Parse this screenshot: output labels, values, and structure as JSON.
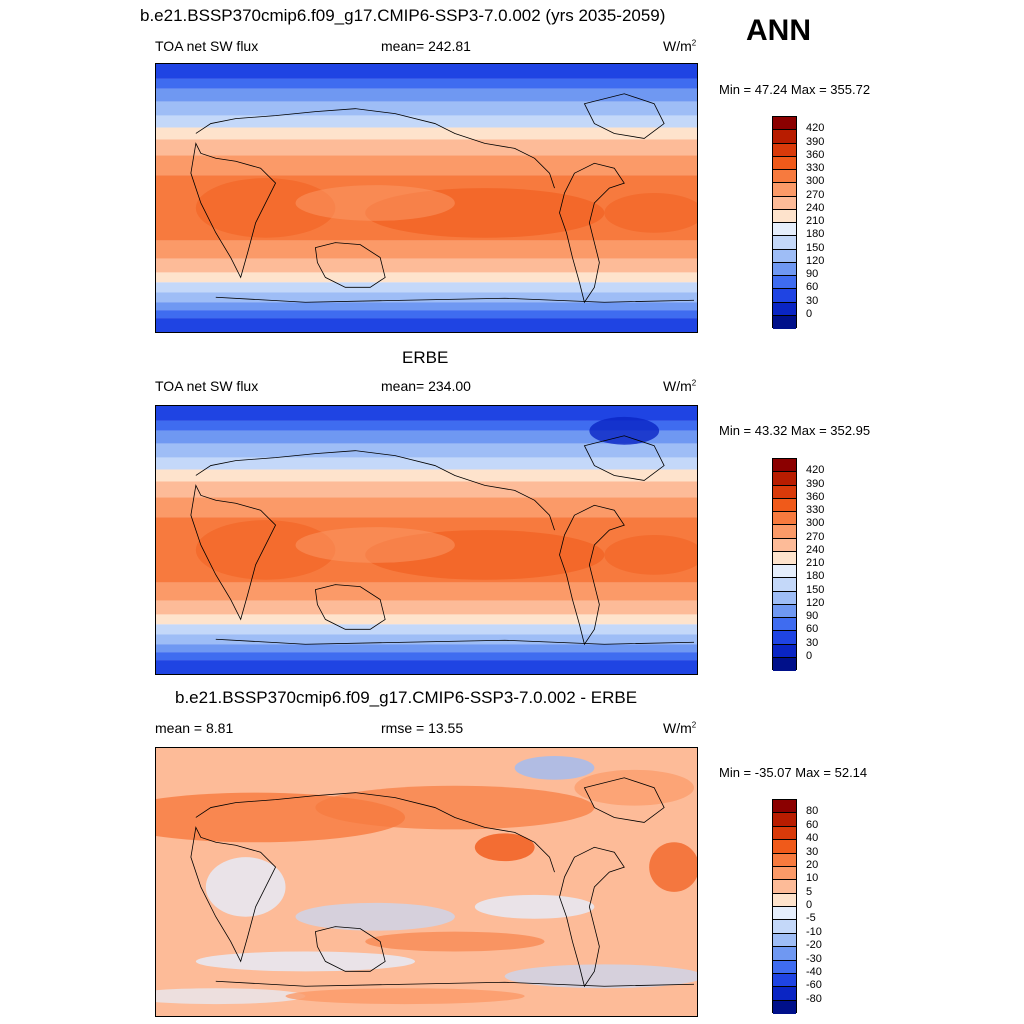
{
  "header": {
    "top_title": "b.e21.BSSP370cmip6.f09_g17.CMIP6-SSP3-7.0.002 (yrs 2035-2059)",
    "season": "ANN"
  },
  "panels": [
    {
      "id": "model",
      "title": "b.e21.BSSP370cmip6.f09_g17.CMIP6-SSP3-7.0.002 (yrs 2035-2059)",
      "left_label": "TOA net SW flux",
      "center_label": "mean= 242.81",
      "units": "W/m",
      "units_sup": "2",
      "minmax": "Min =  47.24 Max = 355.72",
      "colorbar": {
        "ticks": [
          "420",
          "390",
          "360",
          "330",
          "300",
          "270",
          "240",
          "210",
          "180",
          "150",
          "120",
          "90",
          "60",
          "30",
          "0"
        ],
        "colors": [
          "#8b0000",
          "#b81c00",
          "#d93a0a",
          "#f05a1a",
          "#f77a3e",
          "#fb9a68",
          "#fdbb98",
          "#fee3cc",
          "#e5eefc",
          "#c4d8f9",
          "#9ebdf6",
          "#6f98f2",
          "#3f6cf0",
          "#1f44e3",
          "#0a25c4",
          "#00108a"
        ]
      }
    },
    {
      "id": "obs",
      "title": "ERBE",
      "left_label": "TOA net SW flux",
      "center_label": "mean= 234.00",
      "units": "W/m",
      "units_sup": "2",
      "minmax": "Min =  43.32 Max = 352.95",
      "colorbar": {
        "ticks": [
          "420",
          "390",
          "360",
          "330",
          "300",
          "270",
          "240",
          "210",
          "180",
          "150",
          "120",
          "90",
          "60",
          "30",
          "0"
        ],
        "colors": [
          "#8b0000",
          "#b81c00",
          "#d93a0a",
          "#f05a1a",
          "#f77a3e",
          "#fb9a68",
          "#fdbb98",
          "#fee3cc",
          "#e5eefc",
          "#c4d8f9",
          "#9ebdf6",
          "#6f98f2",
          "#3f6cf0",
          "#1f44e3",
          "#0a25c4",
          "#00108a"
        ]
      }
    },
    {
      "id": "diff",
      "title": "b.e21.BSSP370cmip6.f09_g17.CMIP6-SSP3-7.0.002 - ERBE",
      "left_label": "mean =   8.81",
      "center_label": "rmse =  13.55",
      "units": "W/m",
      "units_sup": "2",
      "minmax": "Min = -35.07 Max =  52.14",
      "colorbar": {
        "ticks": [
          "80",
          "60",
          "40",
          "30",
          "20",
          "10",
          "5",
          "0",
          "-5",
          "-10",
          "-20",
          "-30",
          "-40",
          "-60",
          "-80"
        ],
        "colors": [
          "#8b0000",
          "#b81c00",
          "#d93a0a",
          "#f05a1a",
          "#f77a3e",
          "#fb9a68",
          "#fdbb98",
          "#fee3cc",
          "#e5eefc",
          "#c4d8f9",
          "#9ebdf6",
          "#6f98f2",
          "#3f6cf0",
          "#1f44e3",
          "#0a25c4",
          "#00108a"
        ]
      }
    }
  ]
}
